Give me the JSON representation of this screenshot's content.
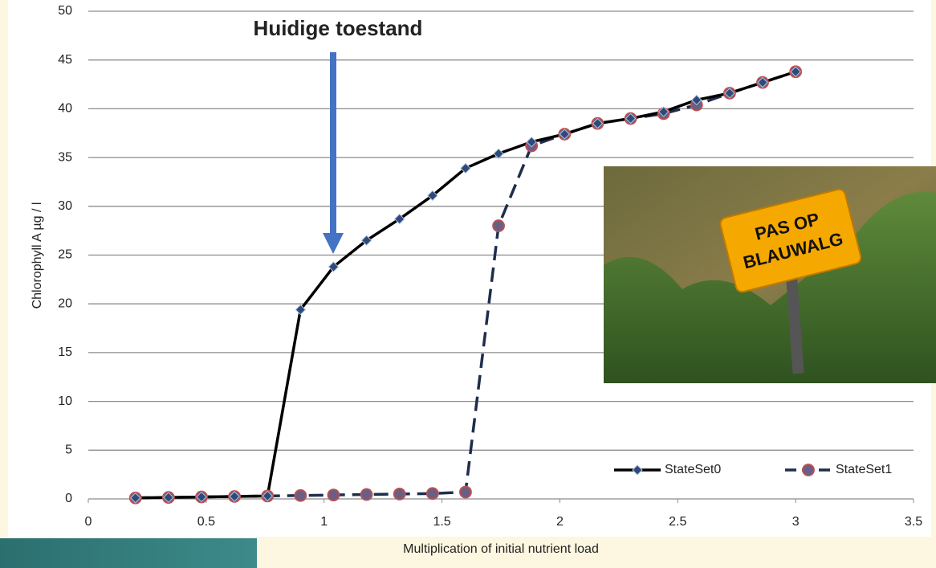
{
  "chart_data": {
    "type": "line",
    "annotation": "Huidige toestand",
    "xlabel": "Multiplication of initial nutrient load",
    "ylabel": "Chlorophyll A µg / l",
    "x": [
      0.2,
      0.34,
      0.48,
      0.62,
      0.76,
      0.9,
      1.04,
      1.18,
      1.32,
      1.46,
      1.6,
      1.74,
      1.88,
      2.02,
      2.16,
      2.3,
      2.44,
      2.58,
      2.72,
      2.86,
      3.0
    ],
    "series": [
      {
        "name": "StateSet0",
        "color": "#000000",
        "marker_color": "#2e4a7a",
        "dashed": false,
        "marker": "diamond",
        "values": [
          0.1,
          0.15,
          0.2,
          0.25,
          0.3,
          19.4,
          23.8,
          26.5,
          28.7,
          31.1,
          33.9,
          35.4,
          36.6,
          37.4,
          38.5,
          39.0,
          39.7,
          40.9,
          41.6,
          42.7,
          43.8
        ]
      },
      {
        "name": "StateSet1",
        "color": "#1f2d4d",
        "marker_color": "#6b5e86",
        "dashed": true,
        "marker": "circle",
        "values": [
          0.1,
          0.15,
          0.2,
          0.25,
          0.3,
          0.35,
          0.4,
          0.45,
          0.5,
          0.55,
          0.7,
          28.0,
          36.2,
          37.4,
          38.5,
          39.0,
          39.5,
          40.4,
          41.6,
          42.7,
          43.8
        ]
      }
    ],
    "xlim": [
      0,
      3.5
    ],
    "xticks": [
      0,
      0.5,
      1,
      1.5,
      2,
      2.5,
      3,
      3.5
    ],
    "ylim": [
      0,
      50
    ],
    "yticks": [
      0,
      5,
      10,
      15,
      20,
      25,
      30,
      35,
      40,
      45,
      50
    ],
    "grid": true,
    "legend": "lower right"
  },
  "photo": {
    "sign": [
      "PAS OP",
      "BLAUWALG"
    ]
  }
}
